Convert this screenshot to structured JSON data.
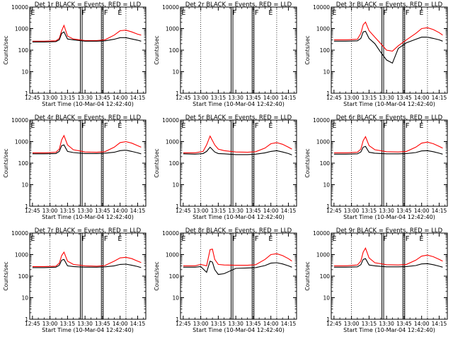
{
  "page": {
    "background": "#ffffff"
  },
  "colors": {
    "events": "#000000",
    "lld": "#ff0000",
    "axes": "#000000"
  },
  "chart_data": [
    {
      "type": "line",
      "title": "Det 1r BLACK = Events, RED = LLD",
      "xlabel": "Start Time (10-Mar-04 12:42:40)",
      "ylabel": "Counts/sec",
      "x_ticks": [
        "12:45",
        "13:00",
        "13:15",
        "13:30",
        "13:45",
        "14:00",
        "14:15"
      ],
      "y_ticks": [
        "1",
        "10",
        "100",
        "1000",
        "10000"
      ],
      "y_scale": "log",
      "ylim": [
        1,
        10000
      ],
      "markers": [
        "E",
        "F",
        "F",
        "E"
      ],
      "series": [
        {
          "x": [
            "12:45",
            "12:55",
            "13:05",
            "13:08",
            "13:10",
            "13:12",
            "13:15",
            "13:20",
            "13:30",
            "13:40",
            "13:47",
            "13:55",
            "14:00",
            "14:05",
            "14:10",
            "14:15",
            "14:18"
          ],
          "y": [
            260,
            260,
            270,
            350,
            800,
            1400,
            450,
            330,
            280,
            280,
            300,
            500,
            800,
            850,
            700,
            550,
            500
          ],
          "color": "#ff0000"
        },
        {
          "x": [
            "12:45",
            "12:55",
            "13:05",
            "13:08",
            "13:10",
            "13:12",
            "13:15",
            "13:20",
            "13:30",
            "13:40",
            "13:47",
            "13:55",
            "14:00",
            "14:05",
            "14:10",
            "14:15",
            "14:18"
          ],
          "y": [
            240,
            240,
            250,
            300,
            600,
            700,
            330,
            300,
            260,
            260,
            270,
            320,
            380,
            380,
            330,
            290,
            260
          ],
          "color": "#000000"
        }
      ]
    },
    {
      "type": "line",
      "title": "Det 2r BLACK = Events, RED = LLD",
      "xlabel": "Start Time (10-Mar-04 12:42:40)",
      "ylabel": "Counts/sec",
      "x_ticks": [
        "12:45",
        "13:00",
        "13:15",
        "13:30",
        "13:45",
        "14:00",
        "14:15"
      ],
      "y_ticks": [
        "1",
        "10",
        "100",
        "1000",
        "10000"
      ],
      "y_scale": "log",
      "ylim": [
        1,
        10000
      ],
      "markers": [
        "E",
        "F",
        "F",
        "E"
      ],
      "series": []
    },
    {
      "type": "line",
      "title": "Det 3r BLACK = Events, RED = LLD",
      "xlabel": "Start Time (10-Mar-04 12:42:40)",
      "ylabel": "Counts/sec",
      "x_ticks": [
        "12:45",
        "13:00",
        "13:15",
        "13:30",
        "13:45",
        "14:00",
        "14:15"
      ],
      "y_ticks": [
        "1",
        "10",
        "100",
        "1000",
        "10000"
      ],
      "y_scale": "log",
      "ylim": [
        1,
        10000
      ],
      "markers": [
        "E",
        "F",
        "F",
        "E"
      ],
      "series": [
        {
          "x": [
            "12:45",
            "12:55",
            "13:05",
            "13:08",
            "13:10",
            "13:12",
            "13:15",
            "13:20",
            "13:25",
            "13:30",
            "13:35",
            "13:40",
            "13:47",
            "13:55",
            "14:00",
            "14:05",
            "14:10",
            "14:15",
            "14:18"
          ],
          "y": [
            300,
            300,
            320,
            600,
            1500,
            2000,
            800,
            400,
            200,
            100,
            90,
            160,
            300,
            600,
            1000,
            1100,
            900,
            650,
            500
          ],
          "color": "#ff0000"
        },
        {
          "x": [
            "12:45",
            "12:55",
            "13:05",
            "13:08",
            "13:10",
            "13:12",
            "13:15",
            "13:20",
            "13:25",
            "13:30",
            "13:35",
            "13:40",
            "13:47",
            "13:55",
            "14:00",
            "14:05",
            "14:10",
            "14:15",
            "14:18"
          ],
          "y": [
            260,
            260,
            270,
            350,
            700,
            750,
            350,
            200,
            80,
            35,
            25,
            120,
            220,
            320,
            400,
            400,
            350,
            300,
            260
          ],
          "color": "#000000"
        }
      ]
    },
    {
      "type": "line",
      "title": "Det 4r BLACK = Events, RED = LLD",
      "xlabel": "Start Time (10-Mar-04 12:42:40)",
      "ylabel": "Counts/sec",
      "x_ticks": [
        "12:45",
        "13:00",
        "13:15",
        "13:30",
        "13:45",
        "14:00",
        "14:15"
      ],
      "y_ticks": [
        "1",
        "10",
        "100",
        "1000",
        "10000"
      ],
      "y_scale": "log",
      "ylim": [
        1,
        10000
      ],
      "markers": [
        "E",
        "F",
        "F",
        "E"
      ],
      "series": [
        {
          "x": [
            "12:45",
            "12:55",
            "13:05",
            "13:08",
            "13:10",
            "13:12",
            "13:15",
            "13:20",
            "13:30",
            "13:40",
            "13:47",
            "13:55",
            "14:00",
            "14:05",
            "14:10",
            "14:15",
            "14:18"
          ],
          "y": [
            300,
            300,
            320,
            450,
            1200,
            1900,
            700,
            420,
            330,
            320,
            340,
            550,
            900,
            1000,
            850,
            650,
            550
          ],
          "color": "#ff0000"
        },
        {
          "x": [
            "12:45",
            "12:55",
            "13:05",
            "13:08",
            "13:10",
            "13:12",
            "13:15",
            "13:20",
            "13:30",
            "13:40",
            "13:47",
            "13:55",
            "14:00",
            "14:05",
            "14:10",
            "14:15",
            "14:18"
          ],
          "y": [
            270,
            270,
            280,
            350,
            650,
            700,
            350,
            310,
            280,
            280,
            290,
            320,
            380,
            400,
            350,
            300,
            270
          ],
          "color": "#000000"
        }
      ]
    },
    {
      "type": "line",
      "title": "Det 5r BLACK = Events, RED = LLD",
      "xlabel": "Start Time (10-Mar-04 12:42:40)",
      "ylabel": "Counts/sec",
      "x_ticks": [
        "12:45",
        "13:00",
        "13:15",
        "13:30",
        "13:45",
        "14:00",
        "14:15"
      ],
      "y_ticks": [
        "1",
        "10",
        "100",
        "1000",
        "10000"
      ],
      "y_scale": "log",
      "ylim": [
        1,
        10000
      ],
      "markers": [
        "E",
        "F",
        "F",
        "E"
      ],
      "series": [
        {
          "x": [
            "12:45",
            "12:55",
            "13:02",
            "13:05",
            "13:08",
            "13:12",
            "13:15",
            "13:20",
            "13:30",
            "13:40",
            "13:47",
            "13:55",
            "14:00",
            "14:05",
            "14:10",
            "14:15",
            "14:18"
          ],
          "y": [
            300,
            300,
            350,
            700,
            1800,
            700,
            450,
            380,
            330,
            320,
            340,
            500,
            800,
            900,
            750,
            550,
            450
          ],
          "color": "#ff0000"
        },
        {
          "x": [
            "12:45",
            "12:55",
            "13:02",
            "13:05",
            "13:08",
            "13:12",
            "13:15",
            "13:20",
            "13:30",
            "13:40",
            "13:47",
            "13:55",
            "14:00",
            "14:05",
            "14:10",
            "14:15",
            "14:18"
          ],
          "y": [
            270,
            260,
            280,
            350,
            550,
            330,
            280,
            270,
            250,
            250,
            260,
            300,
            350,
            380,
            330,
            280,
            240
          ],
          "color": "#000000"
        }
      ]
    },
    {
      "type": "line",
      "title": "Det 6r BLACK = Events, RED = LLD",
      "xlabel": "Start Time (10-Mar-04 12:42:40)",
      "ylabel": "Counts/sec",
      "x_ticks": [
        "12:45",
        "13:00",
        "13:15",
        "13:30",
        "13:45",
        "14:00",
        "14:15"
      ],
      "y_ticks": [
        "1",
        "10",
        "100",
        "1000",
        "10000"
      ],
      "y_scale": "log",
      "ylim": [
        1,
        10000
      ],
      "markers": [
        "E",
        "F",
        "F",
        "E"
      ],
      "series": [
        {
          "x": [
            "12:45",
            "12:55",
            "13:05",
            "13:08",
            "13:10",
            "13:12",
            "13:15",
            "13:20",
            "13:30",
            "13:40",
            "13:47",
            "13:55",
            "14:00",
            "14:05",
            "14:10",
            "14:15",
            "14:18"
          ],
          "y": [
            300,
            300,
            320,
            450,
            1100,
            1700,
            650,
            420,
            340,
            330,
            350,
            550,
            850,
            950,
            800,
            600,
            500
          ],
          "color": "#ff0000"
        },
        {
          "x": [
            "12:45",
            "12:55",
            "13:05",
            "13:08",
            "13:10",
            "13:12",
            "13:15",
            "13:20",
            "13:30",
            "13:40",
            "13:47",
            "13:55",
            "14:00",
            "14:05",
            "14:10",
            "14:15",
            "14:18"
          ],
          "y": [
            260,
            260,
            270,
            330,
            550,
            600,
            320,
            290,
            270,
            270,
            280,
            310,
            370,
            380,
            340,
            290,
            260
          ],
          "color": "#000000"
        }
      ]
    },
    {
      "type": "line",
      "title": "Det 7r BLACK = Events, RED = LLD",
      "xlabel": "Start Time (10-Mar-04 12:42:40)",
      "ylabel": "Counts/sec",
      "x_ticks": [
        "12:45",
        "13:00",
        "13:15",
        "13:30",
        "13:45",
        "14:00",
        "14:15"
      ],
      "y_ticks": [
        "1",
        "10",
        "100",
        "1000",
        "10000"
      ],
      "y_scale": "log",
      "ylim": [
        1,
        10000
      ],
      "markers": [
        "E",
        "F",
        "F",
        "E"
      ],
      "series": [
        {
          "x": [
            "12:45",
            "12:55",
            "13:05",
            "13:08",
            "13:10",
            "13:12",
            "13:15",
            "13:20",
            "13:30",
            "13:40",
            "13:47",
            "13:55",
            "14:00",
            "14:05",
            "14:10",
            "14:15",
            "14:18"
          ],
          "y": [
            280,
            280,
            290,
            400,
            900,
            1300,
            500,
            350,
            300,
            290,
            310,
            500,
            700,
            750,
            650,
            500,
            430
          ],
          "color": "#ff0000"
        },
        {
          "x": [
            "12:45",
            "12:55",
            "13:05",
            "13:08",
            "13:10",
            "13:12",
            "13:15",
            "13:20",
            "13:30",
            "13:40",
            "13:47",
            "13:55",
            "14:00",
            "14:05",
            "14:10",
            "14:15",
            "14:18"
          ],
          "y": [
            250,
            250,
            260,
            320,
            550,
            600,
            300,
            280,
            260,
            260,
            270,
            300,
            350,
            360,
            320,
            280,
            250
          ],
          "color": "#000000"
        }
      ]
    },
    {
      "type": "line",
      "title": "Det 8r BLACK = Events, RED = LLD",
      "xlabel": "Start Time (10-Mar-04 12:42:40)",
      "ylabel": "Counts/sec",
      "x_ticks": [
        "12:45",
        "13:00",
        "13:15",
        "13:30",
        "13:45",
        "14:00",
        "14:15"
      ],
      "y_ticks": [
        "1",
        "10",
        "100",
        "1000",
        "10000"
      ],
      "y_scale": "log",
      "ylim": [
        1,
        10000
      ],
      "markers": [
        "E",
        "F",
        "F",
        "E"
      ],
      "series": [
        {
          "x": [
            "12:45",
            "12:55",
            "13:00",
            "13:05",
            "13:08",
            "13:10",
            "13:12",
            "13:15",
            "13:20",
            "13:30",
            "13:40",
            "13:47",
            "13:55",
            "14:00",
            "14:05",
            "14:10",
            "14:15",
            "14:18"
          ],
          "y": [
            300,
            300,
            350,
            300,
            1700,
            1800,
            600,
            350,
            330,
            320,
            320,
            340,
            600,
            1000,
            1100,
            900,
            650,
            500
          ],
          "color": "#ff0000"
        },
        {
          "x": [
            "12:45",
            "12:55",
            "13:00",
            "13:05",
            "13:08",
            "13:10",
            "13:12",
            "13:15",
            "13:20",
            "13:30",
            "13:40",
            "13:47",
            "13:55",
            "14:00",
            "14:05",
            "14:10",
            "14:15",
            "14:18"
          ],
          "y": [
            260,
            260,
            280,
            150,
            500,
            450,
            200,
            120,
            130,
            230,
            240,
            250,
            310,
            400,
            420,
            370,
            300,
            260
          ],
          "color": "#000000"
        }
      ]
    },
    {
      "type": "line",
      "title": "Det 9r BLACK = Events, RED = LLD",
      "xlabel": "Start Time (10-Mar-04 12:42:40)",
      "ylabel": "Counts/sec",
      "x_ticks": [
        "12:45",
        "13:00",
        "13:15",
        "13:30",
        "13:45",
        "14:00",
        "14:15"
      ],
      "y_ticks": [
        "1",
        "10",
        "100",
        "1000",
        "10000"
      ],
      "y_scale": "log",
      "ylim": [
        1,
        10000
      ],
      "markers": [
        "E",
        "F",
        "F",
        "E"
      ],
      "series": [
        {
          "x": [
            "12:45",
            "12:55",
            "13:05",
            "13:08",
            "13:10",
            "13:12",
            "13:15",
            "13:20",
            "13:30",
            "13:40",
            "13:47",
            "13:55",
            "14:00",
            "14:05",
            "14:10",
            "14:15",
            "14:18"
          ],
          "y": [
            300,
            300,
            330,
            500,
            1300,
            2000,
            700,
            420,
            340,
            330,
            350,
            550,
            850,
            950,
            800,
            600,
            500
          ],
          "color": "#ff0000"
        },
        {
          "x": [
            "12:45",
            "12:55",
            "13:05",
            "13:08",
            "13:10",
            "13:12",
            "13:15",
            "13:20",
            "13:30",
            "13:40",
            "13:47",
            "13:55",
            "14:00",
            "14:05",
            "14:10",
            "14:15",
            "14:18"
          ],
          "y": [
            260,
            260,
            270,
            340,
            600,
            650,
            330,
            300,
            270,
            270,
            280,
            310,
            370,
            380,
            340,
            290,
            260
          ],
          "color": "#000000"
        }
      ]
    }
  ]
}
